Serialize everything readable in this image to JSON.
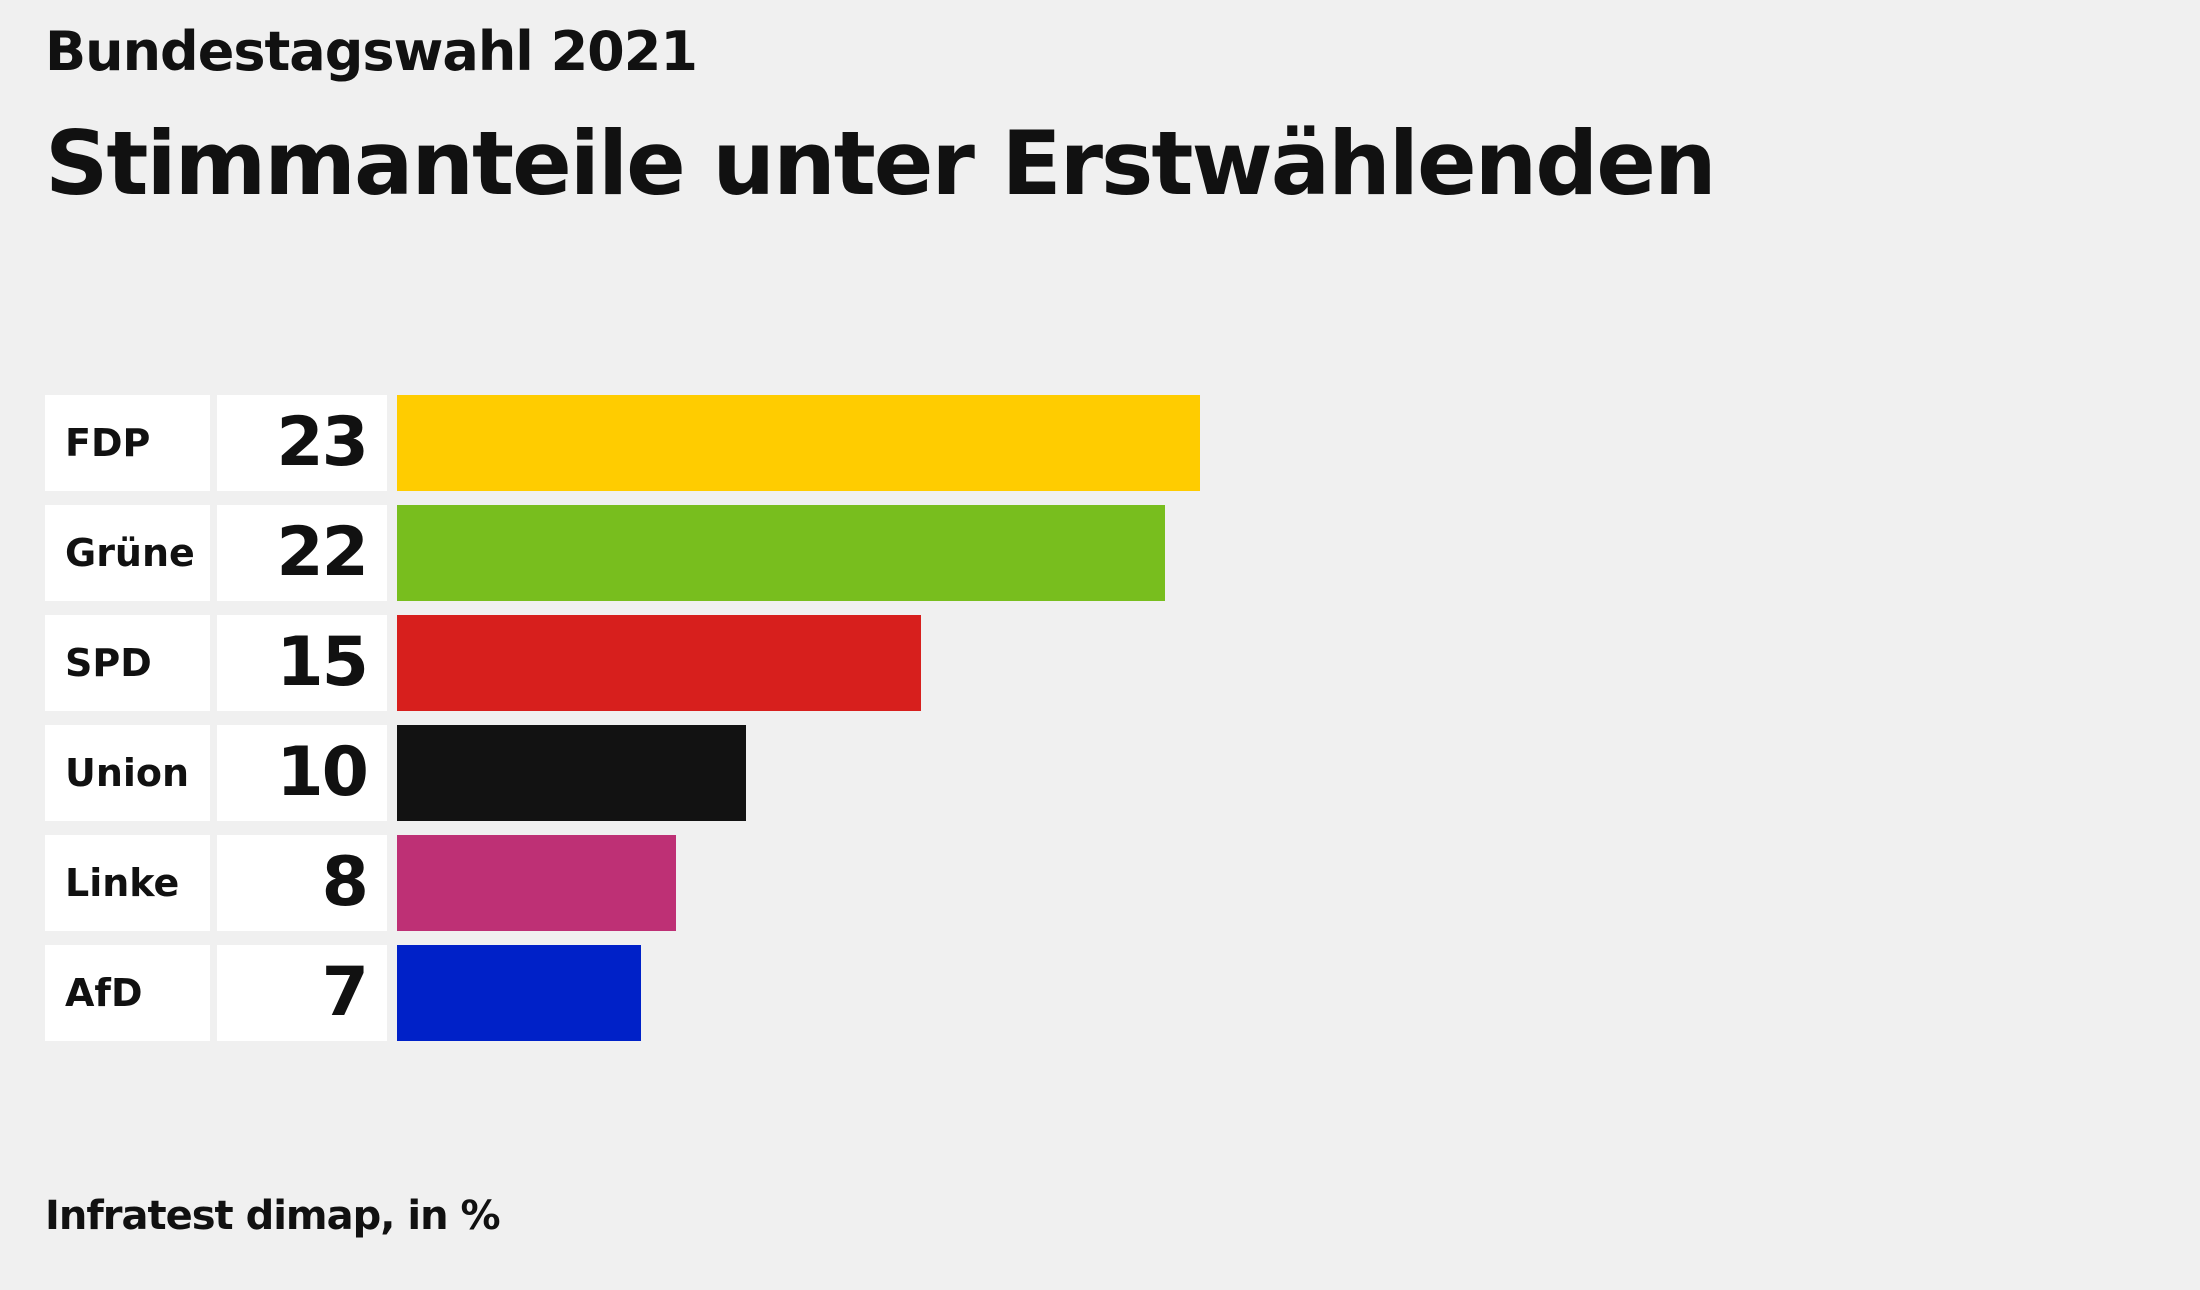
{
  "chart_data": {
    "type": "bar",
    "orientation": "horizontal",
    "supertitle": "Bundestagswahl 2021",
    "title": "Stimmanteile unter Erstwählenden",
    "categories": [
      "FDP",
      "Grüne",
      "SPD",
      "Union",
      "Linke",
      "AfD"
    ],
    "values": [
      23,
      22,
      15,
      10,
      8,
      7
    ],
    "colors": [
      "#ffcc00",
      "#78be1e",
      "#d71f1d",
      "#121212",
      "#be3075",
      "#0021c8"
    ],
    "xlim": [
      0,
      23
    ],
    "grid": false,
    "source": "Infratest dimap, in %"
  }
}
